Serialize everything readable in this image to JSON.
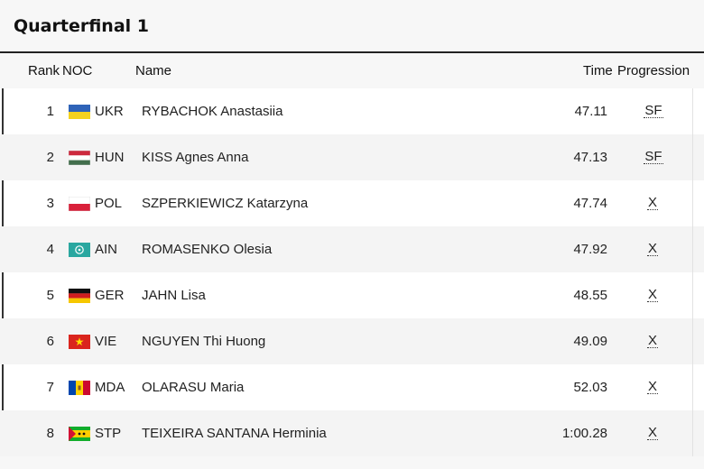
{
  "title": "Quarterfinal 1",
  "header": {
    "rank": "Rank",
    "noc": "NOC",
    "name": "Name",
    "time": "Time",
    "progression": "Progression"
  },
  "rows": [
    {
      "rank": "1",
      "noc": "UKR",
      "name": "RYBACHOK Anastasiia",
      "time": "47.11",
      "progression": "SF"
    },
    {
      "rank": "2",
      "noc": "HUN",
      "name": "KISS Agnes Anna",
      "time": "47.13",
      "progression": "SF"
    },
    {
      "rank": "3",
      "noc": "POL",
      "name": "SZPERKIEWICZ Katarzyna",
      "time": "47.74",
      "progression": "X"
    },
    {
      "rank": "4",
      "noc": "AIN",
      "name": "ROMASENKO Olesia",
      "time": "47.92",
      "progression": "X"
    },
    {
      "rank": "5",
      "noc": "GER",
      "name": "JAHN Lisa",
      "time": "48.55",
      "progression": "X"
    },
    {
      "rank": "6",
      "noc": "VIE",
      "name": "NGUYEN Thi Huong",
      "time": "49.09",
      "progression": "X"
    },
    {
      "rank": "7",
      "noc": "MDA",
      "name": "OLARASU Maria",
      "time": "52.03",
      "progression": "X"
    },
    {
      "rank": "8",
      "noc": "STP",
      "name": "TEIXEIRA SANTANA Herminia",
      "time": "1:00.28",
      "progression": "X"
    }
  ]
}
